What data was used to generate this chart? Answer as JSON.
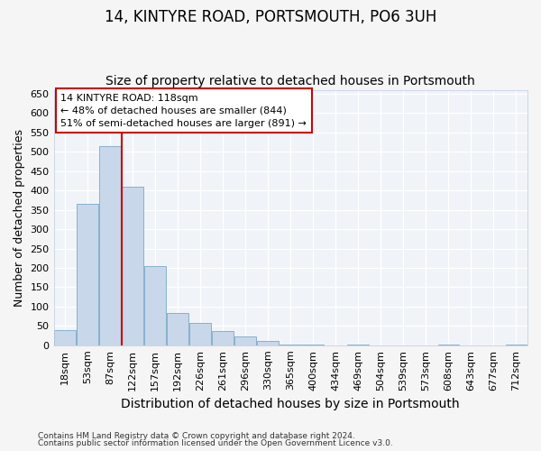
{
  "title": "14, KINTYRE ROAD, PORTSMOUTH, PO6 3UH",
  "subtitle": "Size of property relative to detached houses in Portsmouth",
  "xlabel": "Distribution of detached houses by size in Portsmouth",
  "ylabel": "Number of detached properties",
  "categories": [
    "18sqm",
    "53sqm",
    "87sqm",
    "122sqm",
    "157sqm",
    "192sqm",
    "226sqm",
    "261sqm",
    "296sqm",
    "330sqm",
    "365sqm",
    "400sqm",
    "434sqm",
    "469sqm",
    "504sqm",
    "539sqm",
    "573sqm",
    "608sqm",
    "643sqm",
    "677sqm",
    "712sqm"
  ],
  "values": [
    38,
    365,
    515,
    410,
    205,
    83,
    57,
    37,
    23,
    11,
    3,
    3,
    0,
    3,
    0,
    0,
    0,
    2,
    0,
    0,
    3
  ],
  "bar_color": "#c8d8ea",
  "bar_edge_color": "#7aa8c8",
  "annotation_line1": "14 KINTYRE ROAD: 118sqm",
  "annotation_line2": "← 48% of detached houses are smaller (844)",
  "annotation_line3": "51% of semi-detached houses are larger (891) →",
  "annotation_box_facecolor": "#ffffff",
  "annotation_box_edgecolor": "#cc0000",
  "red_line_color": "#cc0000",
  "title_fontsize": 12,
  "subtitle_fontsize": 10,
  "tick_fontsize": 8,
  "ylabel_fontsize": 9,
  "xlabel_fontsize": 10,
  "ylim": [
    0,
    660
  ],
  "yticks": [
    0,
    50,
    100,
    150,
    200,
    250,
    300,
    350,
    400,
    450,
    500,
    550,
    600,
    650
  ],
  "footer_line1": "Contains HM Land Registry data © Crown copyright and database right 2024.",
  "footer_line2": "Contains public sector information licensed under the Open Government Licence v3.0.",
  "figure_facecolor": "#f5f5f5",
  "axes_facecolor": "#f0f4f8",
  "grid_color": "#ffffff",
  "red_line_xindex": 2.5
}
